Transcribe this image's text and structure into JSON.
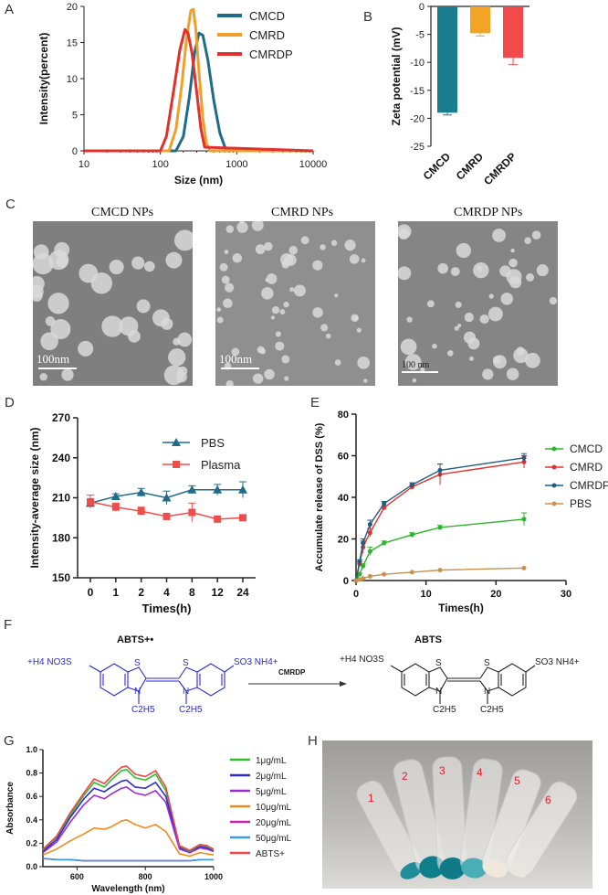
{
  "panels": {
    "A": "A",
    "B": "B",
    "C": "C",
    "D": "D",
    "E": "E",
    "F": "F",
    "G": "G",
    "H": "H"
  },
  "chart_data": [
    {
      "id": "A",
      "type": "line",
      "xscale": "log",
      "xlabel": "Size (nm)",
      "ylabel": "Intensity(percent)",
      "xlim": [
        10,
        10000
      ],
      "ylim": [
        0,
        20
      ],
      "xticks": [
        "10",
        "100",
        "1000",
        "10000"
      ],
      "yticks": [
        "0",
        "5",
        "10",
        "15",
        "20"
      ],
      "legend_position": "top-right",
      "series": [
        {
          "name": "CMCD",
          "color": "#1f6b8a",
          "x": [
            10,
            160,
            200,
            240,
            280,
            320,
            360,
            420,
            500,
            600,
            700,
            800,
            10000
          ],
          "values": [
            0,
            0,
            2.0,
            7.5,
            13.5,
            16.3,
            16.0,
            12.5,
            7.0,
            2.5,
            0.5,
            0,
            0
          ]
        },
        {
          "name": "CMRD",
          "color": "#f0a02a",
          "x": [
            10,
            130,
            160,
            190,
            220,
            250,
            270,
            290,
            320,
            360,
            400,
            450,
            10000
          ],
          "values": [
            0,
            0,
            3.0,
            9.0,
            15.5,
            19.4,
            19.6,
            17.0,
            11.0,
            4.5,
            1.0,
            0,
            0
          ]
        },
        {
          "name": "CMRDP",
          "color": "#e2302c",
          "x": [
            10,
            100,
            120,
            150,
            180,
            210,
            230,
            260,
            300,
            340,
            380,
            10000
          ],
          "values": [
            0,
            0,
            2.0,
            8.5,
            14.0,
            16.8,
            16.3,
            13.5,
            8.0,
            3.0,
            0.5,
            0
          ]
        }
      ]
    },
    {
      "id": "B",
      "type": "bar",
      "ylabel": "Zeta potential (mV)",
      "ylim": [
        -25,
        0
      ],
      "yticks": [
        "0",
        "-5",
        "-10",
        "-15",
        "-20",
        "-25"
      ],
      "categories": [
        "CMCD",
        "CMRD",
        "CMRDP"
      ],
      "values": [
        -19.0,
        -4.8,
        -9.2
      ],
      "errors": [
        0.4,
        0.5,
        1.2
      ],
      "colors": [
        "#1a7d8e",
        "#f4a425",
        "#f24a4a"
      ]
    },
    {
      "id": "D",
      "type": "line",
      "xlabel": "Times(h)",
      "ylabel": "Intensity-average size (nm)",
      "ylim": [
        150,
        270
      ],
      "categories": [
        "0",
        "1",
        "2",
        "4",
        "8",
        "12",
        "24"
      ],
      "yticks": [
        "150",
        "180",
        "210",
        "240",
        "270"
      ],
      "legend_position": "top-right",
      "series": [
        {
          "name": "PBS",
          "color": "#1f6b8a",
          "marker": "triangle",
          "values": [
            206,
            211,
            214,
            210,
            216,
            216,
            216
          ],
          "errors": [
            2,
            2,
            3,
            5,
            3,
            4,
            6
          ]
        },
        {
          "name": "Plasma",
          "color": "#f14c4c",
          "marker": "square",
          "values": [
            207,
            203,
            200,
            196,
            199,
            194,
            195
          ],
          "errors": [
            5,
            3,
            3,
            2,
            7,
            2,
            2
          ]
        }
      ]
    },
    {
      "id": "E",
      "type": "line",
      "xlabel": "Times(h)",
      "ylabel": "Accumulate release of DSS (%)",
      "xlim": [
        0,
        30
      ],
      "ylim": [
        0,
        80
      ],
      "xticks": [
        "0",
        "10",
        "20",
        "30"
      ],
      "yticks": [
        "0",
        "20",
        "40",
        "60",
        "80"
      ],
      "legend_position": "right",
      "series": [
        {
          "name": "CMCD",
          "color": "#2ab52a",
          "x": [
            0,
            0.5,
            1,
            2,
            4,
            8,
            12,
            24
          ],
          "values": [
            0,
            3,
            7,
            14,
            18,
            22,
            25.5,
            29.5
          ],
          "errors": [
            0,
            0.5,
            1,
            2,
            1,
            1,
            1,
            3
          ]
        },
        {
          "name": "CMRD",
          "color": "#e2302c",
          "x": [
            0,
            0.5,
            1,
            2,
            4,
            8,
            12,
            24
          ],
          "values": [
            0,
            8,
            16,
            23,
            35,
            45,
            51,
            57
          ],
          "errors": [
            0,
            1,
            3,
            2,
            1,
            1,
            5,
            3
          ]
        },
        {
          "name": "CMRDP",
          "color": "#1f5d86",
          "x": [
            0,
            0.5,
            1,
            2,
            4,
            8,
            12,
            24
          ],
          "values": [
            0,
            9,
            18,
            27,
            37,
            46,
            53,
            59
          ],
          "errors": [
            0,
            1,
            2,
            2,
            1,
            1,
            3,
            2
          ]
        },
        {
          "name": "PBS",
          "color": "#c8924a",
          "x": [
            0,
            0.5,
            1,
            2,
            4,
            8,
            12,
            24
          ],
          "values": [
            0,
            0.5,
            1,
            2,
            3,
            4,
            5,
            6
          ],
          "errors": [
            0,
            0,
            0,
            0,
            0,
            0,
            0,
            0
          ]
        }
      ]
    },
    {
      "id": "G",
      "type": "line",
      "xlabel": "Wavelength (nm)",
      "ylabel": "Absorbance",
      "xlim": [
        500,
        1000
      ],
      "ylim": [
        0,
        1.0
      ],
      "xticks": [
        "600",
        "800",
        "1000"
      ],
      "yticks": [
        "0.0",
        "0.2",
        "0.4",
        "0.6",
        "0.8",
        "1.0"
      ],
      "legend_position": "right",
      "x": [
        500,
        540,
        580,
        620,
        650,
        680,
        700,
        730,
        745,
        770,
        800,
        830,
        860,
        900,
        930,
        960,
        980,
        1000
      ],
      "series": [
        {
          "name": "1μg/mL",
          "color": "#2ebf2e",
          "values": [
            0.14,
            0.25,
            0.44,
            0.61,
            0.72,
            0.68,
            0.74,
            0.82,
            0.83,
            0.76,
            0.74,
            0.79,
            0.65,
            0.17,
            0.13,
            0.18,
            0.17,
            0.14
          ]
        },
        {
          "name": "2μg/mL",
          "color": "#2a2ad8",
          "values": [
            0.13,
            0.23,
            0.42,
            0.58,
            0.67,
            0.64,
            0.68,
            0.73,
            0.74,
            0.68,
            0.67,
            0.72,
            0.6,
            0.16,
            0.12,
            0.17,
            0.16,
            0.13
          ]
        },
        {
          "name": "5μg/mL",
          "color": "#9b2ad8",
          "values": [
            0.12,
            0.21,
            0.38,
            0.53,
            0.61,
            0.58,
            0.62,
            0.67,
            0.68,
            0.63,
            0.61,
            0.65,
            0.55,
            0.15,
            0.12,
            0.16,
            0.15,
            0.13
          ]
        },
        {
          "name": "10μg/mL",
          "color": "#f08a1a",
          "values": [
            0.1,
            0.15,
            0.22,
            0.28,
            0.33,
            0.32,
            0.34,
            0.39,
            0.4,
            0.36,
            0.33,
            0.36,
            0.3,
            0.11,
            0.09,
            0.12,
            0.11,
            0.1
          ]
        },
        {
          "name": "20μg/mL",
          "color": "#c81fb0",
          "values": [
            0.07,
            0.06,
            0.06,
            0.05,
            0.05,
            0.05,
            0.05,
            0.05,
            0.05,
            0.05,
            0.05,
            0.05,
            0.05,
            0.05,
            0.05,
            0.06,
            0.06,
            0.06
          ]
        },
        {
          "name": "50μg/mL",
          "color": "#3a9ae8",
          "values": [
            0.07,
            0.06,
            0.06,
            0.05,
            0.05,
            0.05,
            0.05,
            0.05,
            0.05,
            0.05,
            0.05,
            0.05,
            0.05,
            0.05,
            0.05,
            0.06,
            0.06,
            0.06
          ]
        },
        {
          "name": "ABTS+",
          "color": "#f04646",
          "values": [
            0.15,
            0.26,
            0.46,
            0.63,
            0.75,
            0.71,
            0.77,
            0.85,
            0.86,
            0.79,
            0.77,
            0.82,
            0.68,
            0.18,
            0.14,
            0.19,
            0.18,
            0.15
          ]
        }
      ]
    }
  ],
  "micrographs": [
    {
      "title": "CMCD NPs",
      "scale_label": "100nm"
    },
    {
      "title": "CMRD NPs",
      "scale_label": "100nm"
    },
    {
      "title": "CMRDP NPs",
      "scale_label": "100 nm"
    }
  ],
  "scheme": {
    "reactant_label": "ABTS+•",
    "product_label": "ABTS",
    "arrow_label": "CMRDP",
    "left_group_reactant": "+H4 NO3S",
    "right_group_reactant": "SO3 NH4+",
    "left_group_product": "+H4 NO3S",
    "right_group_product": "SO3 NH4+",
    "ring_atom_s": "S",
    "ring_atom_n": "N",
    "ethyl": "C2H5"
  },
  "photo": {
    "tube_labels": [
      "1",
      "2",
      "3",
      "4",
      "5",
      "6"
    ]
  }
}
